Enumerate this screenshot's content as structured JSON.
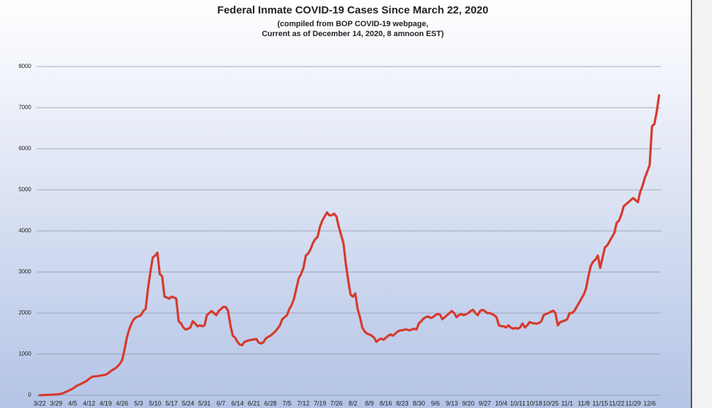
{
  "chart_data": {
    "type": "line",
    "title": "Federal Inmate COVID-19 Cases Since March 22, 2020",
    "subtitle": [
      "(compiled from BOP COVID-19 webpage,",
      "Current as of December 14, 2020, 8 amnoon EST)"
    ],
    "categories": [
      "3/22",
      null,
      null,
      null,
      null,
      null,
      null,
      "3/29",
      null,
      null,
      null,
      null,
      null,
      null,
      "4/5",
      null,
      null,
      null,
      null,
      null,
      null,
      "4/12",
      null,
      null,
      null,
      null,
      null,
      null,
      "4/19",
      null,
      null,
      null,
      null,
      null,
      null,
      "4/26",
      null,
      null,
      null,
      null,
      null,
      null,
      "5/3",
      null,
      null,
      null,
      null,
      null,
      null,
      "5/10",
      null,
      null,
      null,
      null,
      null,
      null,
      "5/17",
      null,
      null,
      null,
      null,
      null,
      null,
      "5/24",
      null,
      null,
      null,
      null,
      null,
      null,
      "5/31",
      null,
      null,
      null,
      null,
      null,
      null,
      "6/7",
      null,
      null,
      null,
      null,
      null,
      null,
      "6/14",
      null,
      null,
      null,
      null,
      null,
      null,
      "6/21",
      null,
      null,
      null,
      null,
      null,
      null,
      "6/28",
      null,
      null,
      null,
      null,
      null,
      null,
      "7/5",
      null,
      null,
      null,
      null,
      null,
      null,
      "7/12",
      null,
      null,
      null,
      null,
      null,
      null,
      "7/19",
      null,
      null,
      null,
      null,
      null,
      null,
      "7/26",
      null,
      null,
      null,
      null,
      null,
      null,
      "8/2",
      null,
      null,
      null,
      null,
      null,
      null,
      "8/9",
      null,
      null,
      null,
      null,
      null,
      null,
      "8/16",
      null,
      null,
      null,
      null,
      null,
      null,
      "8/23",
      null,
      null,
      null,
      null,
      null,
      null,
      "8/30",
      null,
      null,
      null,
      null,
      null,
      null,
      "9/6",
      null,
      null,
      null,
      null,
      null,
      null,
      "9/13",
      null,
      null,
      null,
      null,
      null,
      null,
      "9/20",
      null,
      null,
      null,
      null,
      null,
      null,
      "9/27",
      null,
      null,
      null,
      null,
      null,
      null,
      "10/4",
      null,
      null,
      null,
      null,
      null,
      null,
      "10/11",
      null,
      null,
      null,
      null,
      null,
      null,
      "10/18",
      null,
      null,
      null,
      null,
      null,
      null,
      "10/25",
      null,
      null,
      null,
      null,
      null,
      null,
      "11/1",
      null,
      null,
      null,
      null,
      null,
      null,
      "11/8",
      null,
      null,
      null,
      null,
      null,
      null,
      "11/15",
      null,
      null,
      null,
      null,
      null,
      null,
      "11/22",
      null,
      null,
      null,
      null,
      null,
      null,
      "11/29",
      null,
      null,
      null,
      null,
      null,
      null,
      "12/6",
      null,
      null,
      null,
      null
    ],
    "series": [
      {
        "color": "#d63a2c",
        "values": [
          0,
          3,
          5,
          8,
          10,
          12,
          15,
          20,
          25,
          35,
          50,
          80,
          100,
          130,
          160,
          200,
          240,
          260,
          290,
          320,
          350,
          400,
          440,
          460,
          460,
          470,
          480,
          490,
          500,
          530,
          580,
          620,
          650,
          700,
          760,
          850,
          1100,
          1400,
          1600,
          1750,
          1850,
          1900,
          1920,
          1950,
          2050,
          2100,
          2600,
          3000,
          3350,
          3400,
          3470,
          2950,
          2900,
          2400,
          2380,
          2350,
          2400,
          2380,
          2350,
          1800,
          1750,
          1650,
          1600,
          1620,
          1650,
          1800,
          1750,
          1680,
          1700,
          1680,
          1700,
          1950,
          2000,
          2050,
          2000,
          1950,
          2050,
          2100,
          2150,
          2150,
          2050,
          1700,
          1450,
          1400,
          1300,
          1230,
          1220,
          1300,
          1320,
          1340,
          1350,
          1360,
          1370,
          1280,
          1260,
          1290,
          1380,
          1420,
          1450,
          1500,
          1550,
          1620,
          1700,
          1850,
          1900,
          1950,
          2100,
          2200,
          2350,
          2600,
          2850,
          2950,
          3100,
          3400,
          3450,
          3550,
          3700,
          3800,
          3850,
          4100,
          4250,
          4350,
          4450,
          4380,
          4380,
          4420,
          4350,
          4100,
          3900,
          3700,
          3200,
          2800,
          2450,
          2400,
          2480,
          2100,
          1900,
          1650,
          1550,
          1500,
          1480,
          1450,
          1400,
          1300,
          1350,
          1380,
          1350,
          1400,
          1450,
          1480,
          1450,
          1500,
          1550,
          1580,
          1580,
          1600,
          1600,
          1580,
          1600,
          1620,
          1600,
          1750,
          1800,
          1870,
          1900,
          1920,
          1880,
          1900,
          1950,
          1980,
          1960,
          1850,
          1900,
          1950,
          2000,
          2050,
          2000,
          1900,
          1950,
          1980,
          1950,
          1970,
          2000,
          2050,
          2080,
          2000,
          1950,
          2050,
          2080,
          2050,
          2000,
          2000,
          1980,
          1950,
          1900,
          1700,
          1680,
          1680,
          1650,
          1700,
          1650,
          1620,
          1640,
          1620,
          1650,
          1750,
          1650,
          1700,
          1780,
          1760,
          1750,
          1740,
          1760,
          1800,
          1950,
          1980,
          2000,
          2030,
          2060,
          2000,
          1700,
          1780,
          1800,
          1820,
          1850,
          2000,
          2000,
          2050,
          2150,
          2250,
          2350,
          2450,
          2600,
          2900,
          3150,
          3250,
          3300,
          3400,
          3100,
          3350,
          3600,
          3650,
          3750,
          3850,
          3950,
          4200,
          4250,
          4400,
          4600,
          4650,
          4700,
          4750,
          4800,
          4750,
          4700,
          4950,
          5100,
          5300,
          5450,
          5600,
          6550,
          6600,
          6900,
          7300
        ]
      }
    ],
    "ylim": [
      0,
      8000
    ],
    "yticks": [
      0,
      1000,
      2000,
      3000,
      4000,
      5000,
      6000,
      7000,
      8000
    ],
    "grid": true
  }
}
